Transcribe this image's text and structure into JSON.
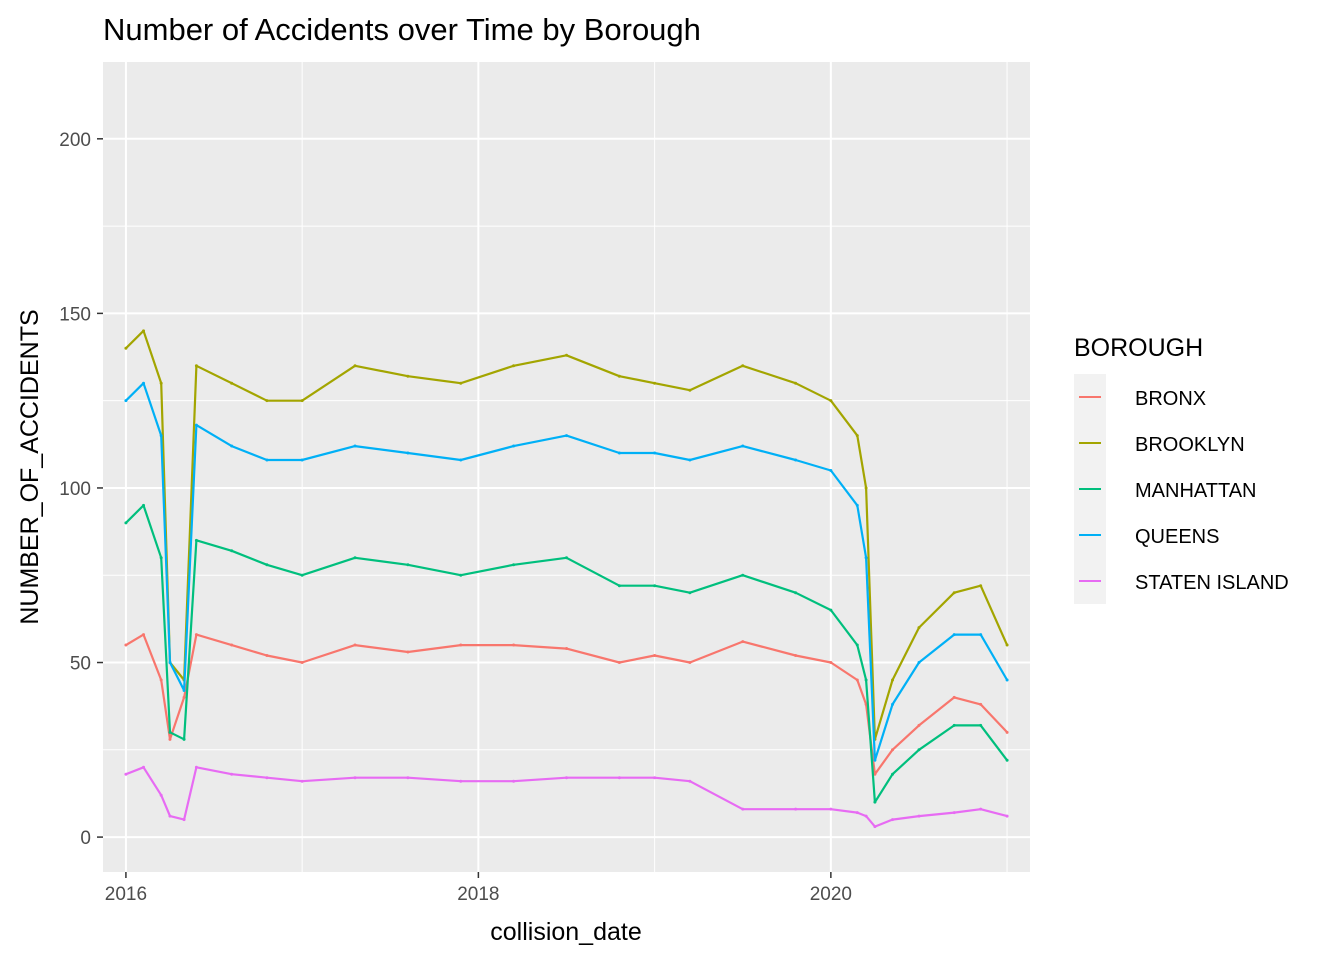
{
  "chart_data": {
    "type": "line",
    "title": "Number of Accidents over Time by Borough",
    "xlabel": "collision_date",
    "ylabel": "NUMBER_OF_ACCIDENTS",
    "xlim": [
      2015.87,
      2021.13
    ],
    "ylim": [
      -10,
      222
    ],
    "x_ticks": [
      {
        "value": 2016,
        "label": "2016"
      },
      {
        "value": 2018,
        "label": "2018"
      },
      {
        "value": 2020,
        "label": "2020"
      }
    ],
    "y_ticks": [
      {
        "value": 0,
        "label": "0"
      },
      {
        "value": 50,
        "label": "50"
      },
      {
        "value": 100,
        "label": "100"
      },
      {
        "value": 150,
        "label": "150"
      },
      {
        "value": 200,
        "label": "200"
      }
    ],
    "grid": true,
    "panel_background": "#ebebeb",
    "legend": {
      "title": "BOROUGH",
      "position": "right"
    },
    "series": [
      {
        "name": "BRONX",
        "color": "#F8766D",
        "x": [
          2016.0,
          2016.1,
          2016.2,
          2016.25,
          2016.33,
          2016.4,
          2016.6,
          2016.8,
          2017.0,
          2017.3,
          2017.6,
          2017.9,
          2018.2,
          2018.5,
          2018.8,
          2019.0,
          2019.2,
          2019.5,
          2019.8,
          2020.0,
          2020.15,
          2020.2,
          2020.25,
          2020.35,
          2020.5,
          2020.7,
          2020.85,
          2021.0
        ],
        "y": [
          55,
          58,
          45,
          28,
          40,
          58,
          55,
          52,
          50,
          55,
          53,
          55,
          55,
          54,
          50,
          52,
          50,
          56,
          52,
          50,
          45,
          38,
          18,
          25,
          32,
          40,
          38,
          30
        ]
      },
      {
        "name": "BROOKLYN",
        "color": "#A3A500",
        "x": [
          2016.0,
          2016.1,
          2016.2,
          2016.25,
          2016.33,
          2016.4,
          2016.6,
          2016.8,
          2017.0,
          2017.3,
          2017.6,
          2017.9,
          2018.2,
          2018.5,
          2018.8,
          2019.0,
          2019.2,
          2019.5,
          2019.8,
          2020.0,
          2020.15,
          2020.2,
          2020.25,
          2020.35,
          2020.5,
          2020.7,
          2020.85,
          2021.0
        ],
        "y": [
          140,
          145,
          130,
          50,
          45,
          135,
          130,
          125,
          125,
          135,
          132,
          130,
          135,
          138,
          132,
          130,
          128,
          135,
          130,
          125,
          115,
          100,
          28,
          45,
          60,
          70,
          72,
          55
        ]
      },
      {
        "name": "MANHATTAN",
        "color": "#00BF7D",
        "x": [
          2016.0,
          2016.1,
          2016.2,
          2016.25,
          2016.33,
          2016.4,
          2016.6,
          2016.8,
          2017.0,
          2017.3,
          2017.6,
          2017.9,
          2018.2,
          2018.5,
          2018.8,
          2019.0,
          2019.2,
          2019.5,
          2019.8,
          2020.0,
          2020.15,
          2020.2,
          2020.25,
          2020.35,
          2020.5,
          2020.7,
          2020.85,
          2021.0
        ],
        "y": [
          90,
          95,
          80,
          30,
          28,
          85,
          82,
          78,
          75,
          80,
          78,
          75,
          78,
          80,
          72,
          72,
          70,
          75,
          70,
          65,
          55,
          45,
          10,
          18,
          25,
          32,
          32,
          22
        ]
      },
      {
        "name": "QUEENS",
        "color": "#00B0F6",
        "x": [
          2016.0,
          2016.1,
          2016.2,
          2016.25,
          2016.33,
          2016.4,
          2016.6,
          2016.8,
          2017.0,
          2017.3,
          2017.6,
          2017.9,
          2018.2,
          2018.5,
          2018.8,
          2019.0,
          2019.2,
          2019.5,
          2019.8,
          2020.0,
          2020.15,
          2020.2,
          2020.25,
          2020.35,
          2020.5,
          2020.7,
          2020.85,
          2021.0
        ],
        "y": [
          125,
          130,
          115,
          50,
          42,
          118,
          112,
          108,
          108,
          112,
          110,
          108,
          112,
          115,
          110,
          110,
          108,
          112,
          108,
          105,
          95,
          80,
          22,
          38,
          50,
          58,
          58,
          45
        ]
      },
      {
        "name": "STATEN ISLAND",
        "color": "#E76BF3",
        "x": [
          2016.0,
          2016.1,
          2016.2,
          2016.25,
          2016.33,
          2016.4,
          2016.6,
          2016.8,
          2017.0,
          2017.3,
          2017.6,
          2017.9,
          2018.2,
          2018.5,
          2018.8,
          2019.0,
          2019.2,
          2019.5,
          2019.8,
          2020.0,
          2020.15,
          2020.2,
          2020.25,
          2020.35,
          2020.5,
          2020.7,
          2020.85,
          2021.0
        ],
        "y": [
          18,
          20,
          12,
          6,
          5,
          20,
          18,
          17,
          16,
          17,
          17,
          16,
          16,
          17,
          17,
          17,
          16,
          8,
          8,
          8,
          7,
          6,
          3,
          5,
          6,
          7,
          8,
          6
        ]
      }
    ]
  }
}
